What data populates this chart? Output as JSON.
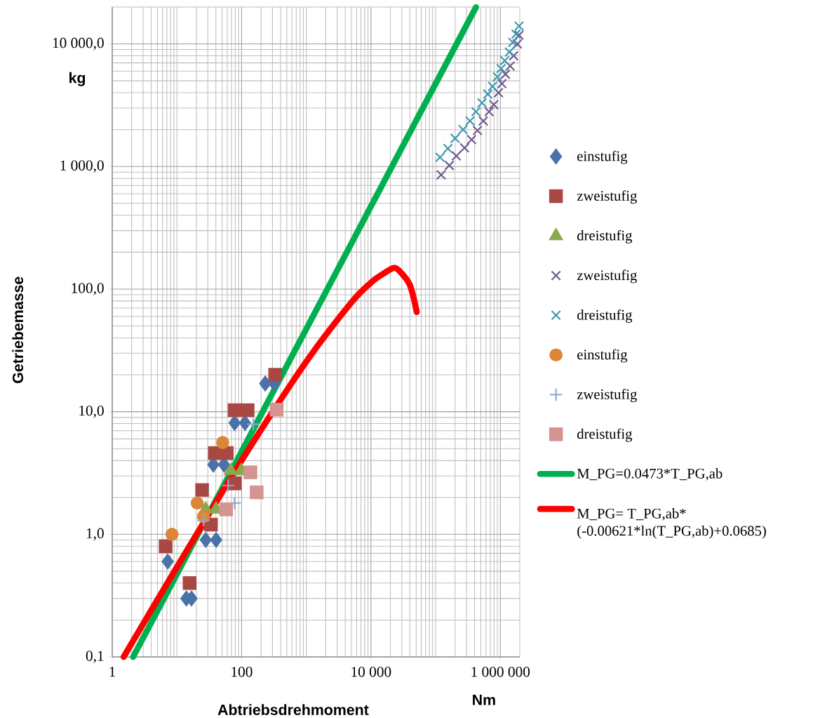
{
  "chart_data": {
    "type": "scatter",
    "xlabel": "Abtriebsdrehmoment",
    "ylabel": "Getriebemasse",
    "annotations": [
      "kg",
      "Nm"
    ],
    "log": "xy",
    "grid": true,
    "legend": "right",
    "xlim": [
      1,
      2000000
    ],
    "ylim": [
      0.1,
      20000
    ],
    "xticks": [
      1,
      100,
      {
        "value": 10000,
        "label": "10 000"
      },
      {
        "value": 1000000,
        "label": "1 000 000"
      }
    ],
    "yticks": [
      {
        "value": 0.1,
        "label": "0,1"
      },
      {
        "value": 1,
        "label": "1,0"
      },
      {
        "value": 10,
        "label": "10,0"
      },
      {
        "value": 100,
        "label": "100,0"
      },
      {
        "value": 1000,
        "label": "1 000,0"
      },
      {
        "value": 10000,
        "label": "10 000,0"
      }
    ],
    "series": [
      {
        "name": "einstufig",
        "type": "scatter",
        "marker": "diamond",
        "color": "#4a72a8",
        "x": [
          7.2,
          14,
          16.8,
          27.9,
          40.4,
          36.6,
          53.4,
          78,
          113,
          232,
          320
        ],
        "values": [
          0.6,
          0.3,
          0.3,
          0.9,
          0.9,
          3.7,
          3.7,
          8.1,
          8.1,
          17,
          17
        ]
      },
      {
        "name": "zweistufig",
        "type": "scatter",
        "marker": "square",
        "color": "#a94843",
        "x": [
          6.7,
          15.7,
          24.5,
          33.6,
          38.6,
          59,
          78,
          78,
          124,
          330
        ],
        "values": [
          0.8,
          0.4,
          2.3,
          1.2,
          4.6,
          4.6,
          2.6,
          10.3,
          10.3,
          20
        ]
      },
      {
        "name": "dreistufig",
        "type": "scatter",
        "marker": "triangle",
        "color": "#8aa84f",
        "x": [
          27.9,
          40.4,
          68,
          99
        ],
        "values": [
          1.6,
          1.6,
          3.3,
          3.3
        ]
      },
      {
        "name": "zweistufig",
        "type": "scatter",
        "marker": "cross",
        "color": "#71588f",
        "x": [
          121600,
          163000,
          209000,
          280000,
          360000,
          443000,
          545000,
          672000,
          792000,
          937000,
          1060000,
          1200000,
          1420000,
          1610000,
          1830000,
          1950000
        ],
        "values": [
          855,
          1020,
          1220,
          1420,
          1660,
          1970,
          2350,
          2800,
          3200,
          4000,
          4750,
          5660,
          6600,
          8000,
          10000,
          11800
        ]
      },
      {
        "name": "dreistufig",
        "type": "scatter",
        "marker": "cross",
        "color": "#3f97ae",
        "x": [
          117000,
          155000,
          200000,
          265000,
          340000,
          420000,
          520000,
          640000,
          760000,
          900000,
          1030000,
          1170000,
          1380000,
          1560000,
          1750000,
          1950000
        ],
        "values": [
          1190,
          1400,
          1700,
          2000,
          2350,
          2800,
          3300,
          3900,
          4500,
          5400,
          6300,
          7300,
          8600,
          10300,
          12000,
          14000
        ]
      },
      {
        "name": "einstufig",
        "type": "scatter",
        "marker": "circle",
        "color": "#dc8638",
        "x": [
          8.4,
          20.6,
          25.8,
          51
        ],
        "values": [
          1.0,
          1.8,
          1.4,
          5.6
        ]
      },
      {
        "name": "zweistufig",
        "type": "scatter",
        "marker": "plus",
        "color": "#8ea8d2",
        "x": [
          25.8,
          62,
          78,
          152
        ],
        "values": [
          1.3,
          2.5,
          1.8,
          7.9
        ]
      },
      {
        "name": "dreistufig",
        "type": "scatter",
        "marker": "square",
        "color": "#d49491",
        "x": [
          57.6,
          137,
          171,
          348
        ],
        "values": [
          1.6,
          3.2,
          2.2,
          10.4
        ]
      },
      {
        "name": "M_PG=0.0473*T_PG,ab",
        "type": "line",
        "color": "#00b050",
        "x": [
          2.1,
          100,
          10000,
          420000
        ],
        "values": [
          0.1,
          4.73,
          473,
          19900
        ]
      },
      {
        "name": "M_PG= T_PG,ab* (-0.00621*ln(T_PG,ab)+0.0685)",
        "type": "line",
        "color": "#ff0000",
        "x": [
          1.5,
          10,
          100,
          1000,
          5000,
          10000,
          15000,
          23000,
          30000,
          39000,
          45000,
          51000
        ],
        "values": [
          0.1,
          0.54,
          4.0,
          25.6,
          78,
          113,
          132,
          149,
          134,
          111,
          88,
          65
        ]
      }
    ]
  }
}
